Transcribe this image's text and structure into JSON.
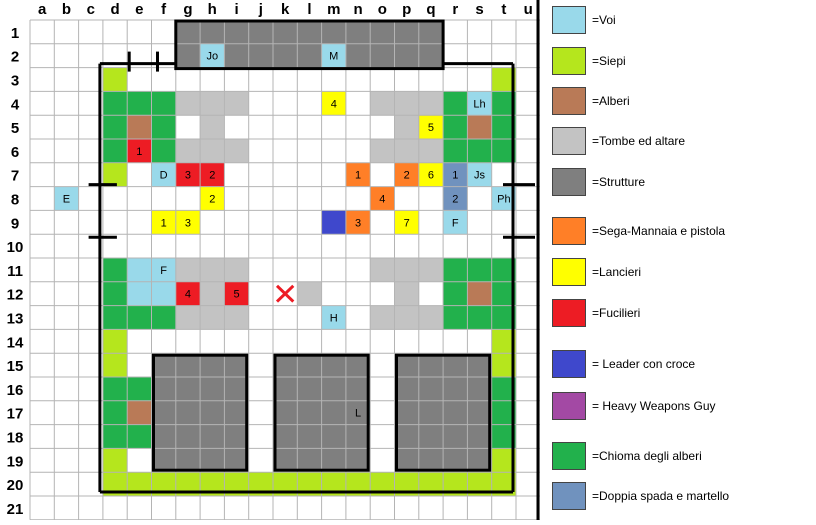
{
  "colors": {
    "voi": "#99d9ea",
    "siepi": "#b5e61d",
    "alberi": "#b97a57",
    "tombe": "#c3c3c3",
    "strutture": "#7f7f7f",
    "sega": "#ff7f27",
    "lancieri": "#ffff00",
    "fucilieri": "#ed1c24",
    "leader": "#3f48cc",
    "heavy": "#a349a4",
    "chioma": "#22b14c",
    "doppia": "#7092be",
    "grid": "#b4b4b4",
    "wall": "#000000",
    "marker": "#ed1c24"
  },
  "columns": [
    "a",
    "b",
    "c",
    "d",
    "e",
    "f",
    "g",
    "h",
    "i",
    "j",
    "k",
    "l",
    "m",
    "n",
    "o",
    "p",
    "q",
    "r",
    "s",
    "t",
    "u"
  ],
  "rows": [
    "1",
    "2",
    "3",
    "4",
    "5",
    "6",
    "7",
    "8",
    "9",
    "10",
    "11",
    "12",
    "13",
    "14",
    "15",
    "16",
    "17",
    "18",
    "19",
    "20",
    "21"
  ],
  "cells": [
    {
      "c": 6,
      "r": 0,
      "t": "strutture"
    },
    {
      "c": 7,
      "r": 0,
      "t": "strutture"
    },
    {
      "c": 8,
      "r": 0,
      "t": "strutture"
    },
    {
      "c": 9,
      "r": 0,
      "t": "strutture"
    },
    {
      "c": 10,
      "r": 0,
      "t": "strutture"
    },
    {
      "c": 11,
      "r": 0,
      "t": "strutture"
    },
    {
      "c": 12,
      "r": 0,
      "t": "strutture"
    },
    {
      "c": 13,
      "r": 0,
      "t": "strutture"
    },
    {
      "c": 14,
      "r": 0,
      "t": "strutture"
    },
    {
      "c": 15,
      "r": 0,
      "t": "strutture"
    },
    {
      "c": 16,
      "r": 0,
      "t": "strutture"
    },
    {
      "c": 6,
      "r": 1,
      "t": "strutture"
    },
    {
      "c": 7,
      "r": 1,
      "t": "voi",
      "label": "Jo"
    },
    {
      "c": 8,
      "r": 1,
      "t": "strutture"
    },
    {
      "c": 9,
      "r": 1,
      "t": "strutture"
    },
    {
      "c": 10,
      "r": 1,
      "t": "strutture"
    },
    {
      "c": 11,
      "r": 1,
      "t": "strutture"
    },
    {
      "c": 12,
      "r": 1,
      "t": "voi",
      "label": "M"
    },
    {
      "c": 13,
      "r": 1,
      "t": "strutture"
    },
    {
      "c": 14,
      "r": 1,
      "t": "strutture"
    },
    {
      "c": 15,
      "r": 1,
      "t": "strutture"
    },
    {
      "c": 16,
      "r": 1,
      "t": "strutture"
    },
    {
      "c": 3,
      "r": 2,
      "t": "siepi"
    },
    {
      "c": 19,
      "r": 2,
      "t": "siepi"
    },
    {
      "c": 3,
      "r": 3,
      "t": "chioma"
    },
    {
      "c": 4,
      "r": 3,
      "t": "chioma"
    },
    {
      "c": 5,
      "r": 3,
      "t": "chioma"
    },
    {
      "c": 6,
      "r": 3,
      "t": "tombe"
    },
    {
      "c": 7,
      "r": 3,
      "t": "tombe"
    },
    {
      "c": 8,
      "r": 3,
      "t": "tombe"
    },
    {
      "c": 12,
      "r": 3,
      "t": "lancieri",
      "label": "4"
    },
    {
      "c": 14,
      "r": 3,
      "t": "tombe"
    },
    {
      "c": 15,
      "r": 3,
      "t": "tombe"
    },
    {
      "c": 16,
      "r": 3,
      "t": "tombe"
    },
    {
      "c": 17,
      "r": 3,
      "t": "chioma"
    },
    {
      "c": 18,
      "r": 3,
      "t": "voi",
      "label": "Lh"
    },
    {
      "c": 19,
      "r": 3,
      "t": "chioma"
    },
    {
      "c": 3,
      "r": 4,
      "t": "chioma"
    },
    {
      "c": 4,
      "r": 4,
      "t": "alberi"
    },
    {
      "c": 5,
      "r": 4,
      "t": "chioma"
    },
    {
      "c": 7,
      "r": 4,
      "t": "tombe"
    },
    {
      "c": 15,
      "r": 4,
      "t": "tombe"
    },
    {
      "c": 16,
      "r": 4,
      "t": "lancieri",
      "label": "5"
    },
    {
      "c": 17,
      "r": 4,
      "t": "chioma"
    },
    {
      "c": 18,
      "r": 4,
      "t": "alberi"
    },
    {
      "c": 19,
      "r": 4,
      "t": "chioma"
    },
    {
      "c": 3,
      "r": 5,
      "t": "chioma"
    },
    {
      "c": 4,
      "r": 5,
      "t": "fucilieri",
      "label": "1"
    },
    {
      "c": 5,
      "r": 5,
      "t": "chioma"
    },
    {
      "c": 6,
      "r": 5,
      "t": "tombe"
    },
    {
      "c": 7,
      "r": 5,
      "t": "tombe"
    },
    {
      "c": 8,
      "r": 5,
      "t": "tombe"
    },
    {
      "c": 14,
      "r": 5,
      "t": "tombe"
    },
    {
      "c": 15,
      "r": 5,
      "t": "tombe"
    },
    {
      "c": 16,
      "r": 5,
      "t": "tombe"
    },
    {
      "c": 17,
      "r": 5,
      "t": "chioma"
    },
    {
      "c": 18,
      "r": 5,
      "t": "chioma"
    },
    {
      "c": 19,
      "r": 5,
      "t": "chioma"
    },
    {
      "c": 3,
      "r": 6,
      "t": "siepi"
    },
    {
      "c": 5,
      "r": 6,
      "t": "voi",
      "label": "D"
    },
    {
      "c": 6,
      "r": 6,
      "t": "fucilieri",
      "label": "3"
    },
    {
      "c": 7,
      "r": 6,
      "t": "fucilieri",
      "label": "2"
    },
    {
      "c": 13,
      "r": 6,
      "t": "sega",
      "label": "1"
    },
    {
      "c": 15,
      "r": 6,
      "t": "sega",
      "label": "2"
    },
    {
      "c": 16,
      "r": 6,
      "t": "lancieri",
      "label": "6"
    },
    {
      "c": 17,
      "r": 6,
      "t": "doppia",
      "label": "1"
    },
    {
      "c": 18,
      "r": 6,
      "t": "voi",
      "label": "Js"
    },
    {
      "c": 1,
      "r": 7,
      "t": "voi",
      "label": "E"
    },
    {
      "c": 7,
      "r": 7,
      "t": "lancieri",
      "label": "2"
    },
    {
      "c": 14,
      "r": 7,
      "t": "sega",
      "label": "4"
    },
    {
      "c": 17,
      "r": 7,
      "t": "doppia",
      "label": "2"
    },
    {
      "c": 19,
      "r": 7,
      "t": "voi",
      "label": "Ph"
    },
    {
      "c": 5,
      "r": 8,
      "t": "lancieri",
      "label": "1"
    },
    {
      "c": 6,
      "r": 8,
      "t": "lancieri",
      "label": "3"
    },
    {
      "c": 12,
      "r": 8,
      "t": "leader"
    },
    {
      "c": 13,
      "r": 8,
      "t": "sega",
      "label": "3"
    },
    {
      "c": 15,
      "r": 8,
      "t": "lancieri",
      "label": "7"
    },
    {
      "c": 17,
      "r": 8,
      "t": "voi",
      "label": "F"
    },
    {
      "c": 3,
      "r": 10,
      "t": "chioma"
    },
    {
      "c": 4,
      "r": 10,
      "t": "voi"
    },
    {
      "c": 5,
      "r": 10,
      "t": "voi",
      "label": "F"
    },
    {
      "c": 6,
      "r": 10,
      "t": "tombe"
    },
    {
      "c": 7,
      "r": 10,
      "t": "tombe"
    },
    {
      "c": 8,
      "r": 10,
      "t": "tombe"
    },
    {
      "c": 14,
      "r": 10,
      "t": "tombe"
    },
    {
      "c": 15,
      "r": 10,
      "t": "tombe"
    },
    {
      "c": 16,
      "r": 10,
      "t": "tombe"
    },
    {
      "c": 17,
      "r": 10,
      "t": "chioma"
    },
    {
      "c": 18,
      "r": 10,
      "t": "chioma"
    },
    {
      "c": 19,
      "r": 10,
      "t": "chioma"
    },
    {
      "c": 3,
      "r": 11,
      "t": "chioma"
    },
    {
      "c": 4,
      "r": 11,
      "t": "voi"
    },
    {
      "c": 5,
      "r": 11,
      "t": "voi"
    },
    {
      "c": 6,
      "r": 11,
      "t": "fucilieri",
      "label": "4"
    },
    {
      "c": 7,
      "r": 11,
      "t": "tombe"
    },
    {
      "c": 8,
      "r": 11,
      "t": "fucilieri",
      "label": "5"
    },
    {
      "c": 11,
      "r": 11,
      "t": "tombe"
    },
    {
      "c": 15,
      "r": 11,
      "t": "tombe"
    },
    {
      "c": 17,
      "r": 11,
      "t": "chioma"
    },
    {
      "c": 18,
      "r": 11,
      "t": "alberi"
    },
    {
      "c": 19,
      "r": 11,
      "t": "chioma"
    },
    {
      "c": 3,
      "r": 12,
      "t": "chioma"
    },
    {
      "c": 4,
      "r": 12,
      "t": "chioma"
    },
    {
      "c": 5,
      "r": 12,
      "t": "chioma"
    },
    {
      "c": 6,
      "r": 12,
      "t": "tombe"
    },
    {
      "c": 7,
      "r": 12,
      "t": "tombe"
    },
    {
      "c": 8,
      "r": 12,
      "t": "tombe"
    },
    {
      "c": 12,
      "r": 12,
      "t": "voi",
      "label": "H"
    },
    {
      "c": 14,
      "r": 12,
      "t": "tombe"
    },
    {
      "c": 15,
      "r": 12,
      "t": "tombe"
    },
    {
      "c": 16,
      "r": 12,
      "t": "tombe"
    },
    {
      "c": 17,
      "r": 12,
      "t": "chioma"
    },
    {
      "c": 18,
      "r": 12,
      "t": "chioma"
    },
    {
      "c": 19,
      "r": 12,
      "t": "chioma"
    },
    {
      "c": 3,
      "r": 13,
      "t": "siepi"
    },
    {
      "c": 19,
      "r": 13,
      "t": "siepi"
    },
    {
      "c": 3,
      "r": 14,
      "t": "siepi"
    },
    {
      "c": 19,
      "r": 14,
      "t": "siepi"
    },
    {
      "c": 3,
      "r": 15,
      "t": "chioma"
    },
    {
      "c": 4,
      "r": 15,
      "t": "chioma"
    },
    {
      "c": 18,
      "r": 15,
      "t": "chioma"
    },
    {
      "c": 19,
      "r": 15,
      "t": "chioma"
    },
    {
      "c": 3,
      "r": 16,
      "t": "chioma"
    },
    {
      "c": 4,
      "r": 16,
      "t": "alberi"
    },
    {
      "c": 13,
      "r": 16,
      "t": "voi",
      "label": "L"
    },
    {
      "c": 18,
      "r": 16,
      "t": "alberi"
    },
    {
      "c": 19,
      "r": 16,
      "t": "chioma"
    },
    {
      "c": 3,
      "r": 17,
      "t": "chioma"
    },
    {
      "c": 4,
      "r": 17,
      "t": "chioma"
    },
    {
      "c": 18,
      "r": 17,
      "t": "chioma"
    },
    {
      "c": 19,
      "r": 17,
      "t": "chioma"
    },
    {
      "c": 3,
      "r": 18,
      "t": "siepi"
    },
    {
      "c": 19,
      "r": 18,
      "t": "siepi"
    },
    {
      "c": 3,
      "r": 19,
      "t": "siepi"
    },
    {
      "c": 4,
      "r": 19,
      "t": "siepi"
    },
    {
      "c": 5,
      "r": 19,
      "t": "siepi"
    },
    {
      "c": 6,
      "r": 19,
      "t": "siepi"
    },
    {
      "c": 7,
      "r": 19,
      "t": "siepi"
    },
    {
      "c": 8,
      "r": 19,
      "t": "siepi"
    },
    {
      "c": 9,
      "r": 19,
      "t": "siepi"
    },
    {
      "c": 10,
      "r": 19,
      "t": "siepi"
    },
    {
      "c": 11,
      "r": 19,
      "t": "siepi"
    },
    {
      "c": 12,
      "r": 19,
      "t": "siepi"
    },
    {
      "c": 13,
      "r": 19,
      "t": "siepi"
    },
    {
      "c": 14,
      "r": 19,
      "t": "siepi"
    },
    {
      "c": 15,
      "r": 19,
      "t": "siepi"
    },
    {
      "c": 16,
      "r": 19,
      "t": "siepi"
    },
    {
      "c": 17,
      "r": 19,
      "t": "siepi"
    },
    {
      "c": 18,
      "r": 19,
      "t": "siepi"
    },
    {
      "c": 19,
      "r": 19,
      "t": "siepi"
    }
  ],
  "buildings": [
    {
      "c1": 5,
      "r1": 14,
      "c2": 8,
      "r2": 18
    },
    {
      "c1": 10,
      "r1": 14,
      "c2": 13,
      "r2": 18
    },
    {
      "c1": 15,
      "r1": 14,
      "c2": 18,
      "r2": 18
    }
  ],
  "marker": {
    "col": "k",
    "row": "12"
  },
  "legend": [
    {
      "key": "voi",
      "label": "=Voi"
    },
    {
      "key": "siepi",
      "label": "=Siepi"
    },
    {
      "key": "alberi",
      "label": "=Alberi"
    },
    {
      "key": "tombe",
      "label": "=Tombe ed altare"
    },
    {
      "key": "strutture",
      "label": "=Strutture"
    },
    {
      "key": "sega",
      "label": "=Sega-Mannaia e pistola"
    },
    {
      "key": "lancieri",
      "label": "=Lancieri"
    },
    {
      "key": "fucilieri",
      "label": "=Fucilieri"
    },
    {
      "key": "leader",
      "label": "= Leader con croce"
    },
    {
      "key": "heavy",
      "label": "= Heavy Weapons Guy"
    },
    {
      "key": "chioma",
      "label": "=Chioma degli alberi"
    },
    {
      "key": "doppia",
      "label": "=Doppia spada e martello"
    }
  ]
}
